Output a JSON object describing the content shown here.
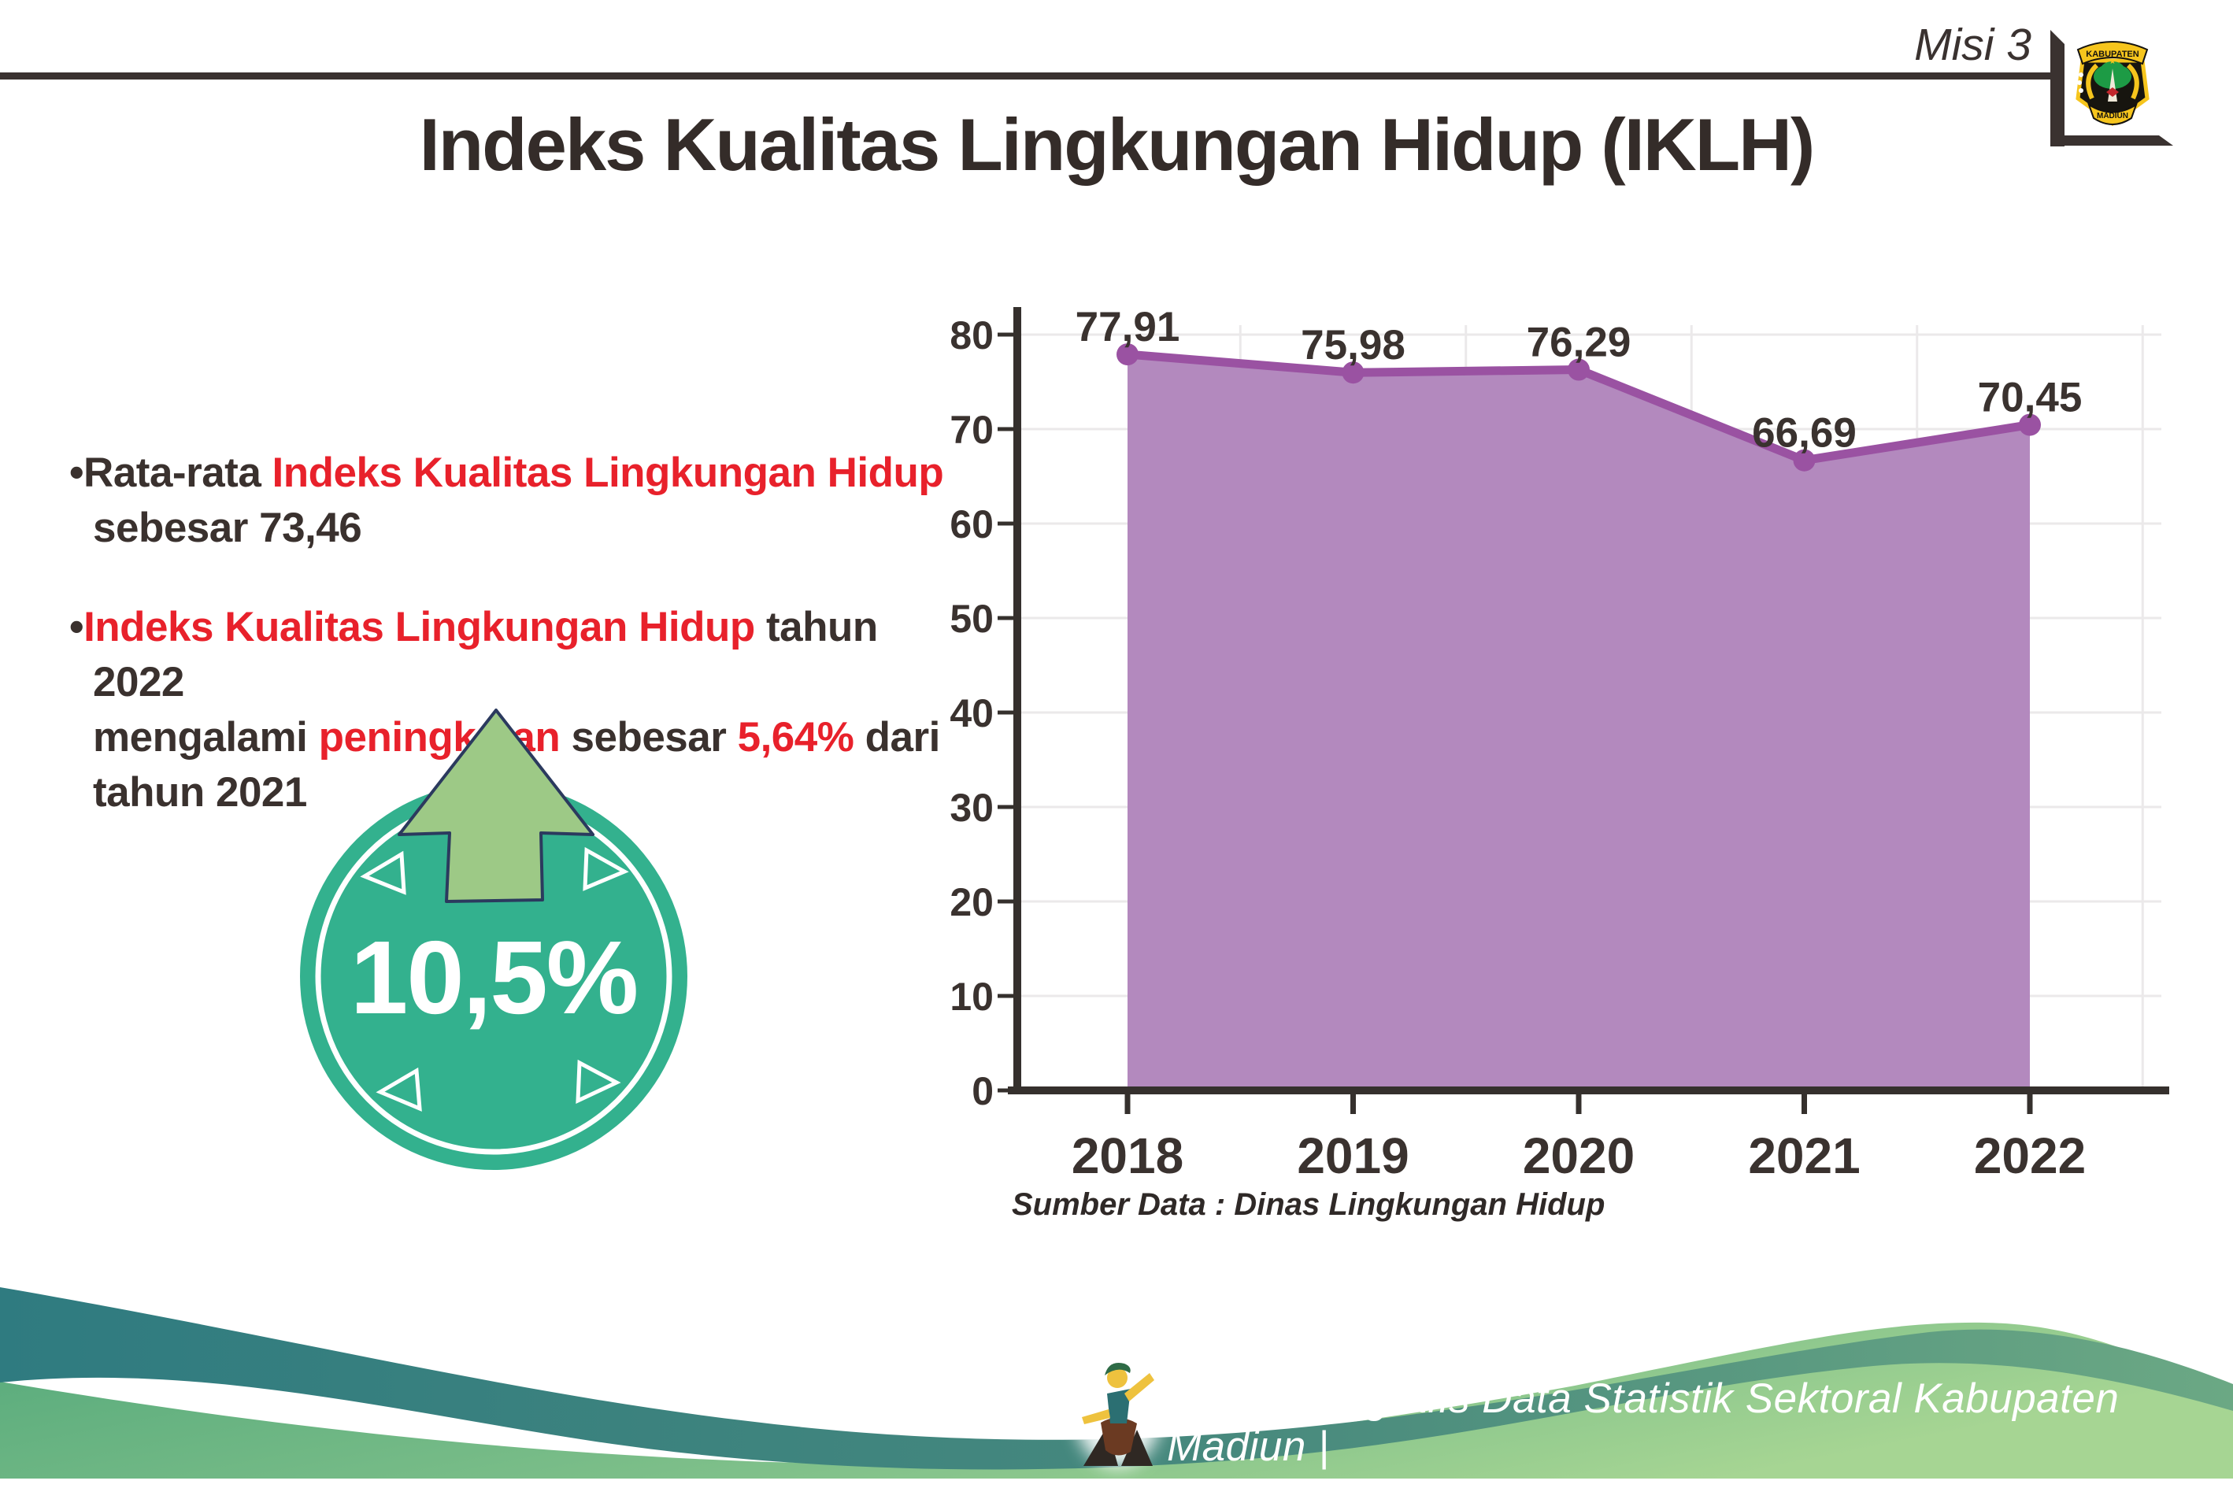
{
  "header": {
    "misi_label": "Misi 3"
  },
  "emblem": {
    "top_text": "KABUPATEN",
    "bottom_text": "MADIUN"
  },
  "title": "Indeks Kualitas Lingkungan Hidup (IKLH)",
  "bullets": [
    {
      "segments": [
        {
          "text": "•Rata-rata ",
          "color": "dark"
        },
        {
          "text": "Indeks Kualitas Lingkungan Hidup",
          "color": "red"
        },
        {
          "br": true
        },
        {
          "text": "sebesar 73,46",
          "color": "dark"
        }
      ]
    },
    {
      "segments": [
        {
          "text": "•",
          "color": "dark"
        },
        {
          "text": "Indeks Kualitas Lingkungan Hidup",
          "color": "red"
        },
        {
          "text": " tahun 2022",
          "color": "dark"
        },
        {
          "br": true
        },
        {
          "text": "mengalami ",
          "color": "dark"
        },
        {
          "text": "peningkatan",
          "color": "red"
        },
        {
          "text": " sebesar ",
          "color": "dark"
        },
        {
          "text": "5,64%",
          "color": "red"
        },
        {
          "text": " dari",
          "color": "dark"
        },
        {
          "br": true
        },
        {
          "text": "tahun 2021",
          "color": "dark"
        }
      ]
    }
  ],
  "badge": {
    "value": "10,5%",
    "circle_color": "#33b18e",
    "arrow_color": "#9dc986"
  },
  "chart_data": {
    "type": "area",
    "categories": [
      "2018",
      "2019",
      "2020",
      "2021",
      "2022"
    ],
    "values": [
      77.91,
      75.98,
      76.29,
      66.69,
      70.45
    ],
    "labels": [
      "77,91",
      "75,98",
      "76,29",
      "66,69",
      "70,45"
    ],
    "title": "",
    "xlabel": "",
    "ylabel": "",
    "ylim": [
      0,
      80
    ],
    "yticks": [
      0,
      10,
      20,
      30,
      40,
      50,
      60,
      70,
      80
    ],
    "grid": true,
    "legend": "none",
    "area_color": "#b389be",
    "line_color": "#9a52a2",
    "source": "Sumber Data : Dinas Lingkungan Hidup"
  },
  "footer": {
    "credit": "Media Infografis Data Statistik Sektoral Kabupaten Madiun |"
  },
  "theme": {
    "grid": "#ebe9ea",
    "axis": "#35302d",
    "text": "#3a322f",
    "rule": "#3a3230",
    "red": "#e8212b",
    "dark": "#3a312e",
    "teal_wave": "#337b80",
    "green_wave": "#7bbd87"
  }
}
